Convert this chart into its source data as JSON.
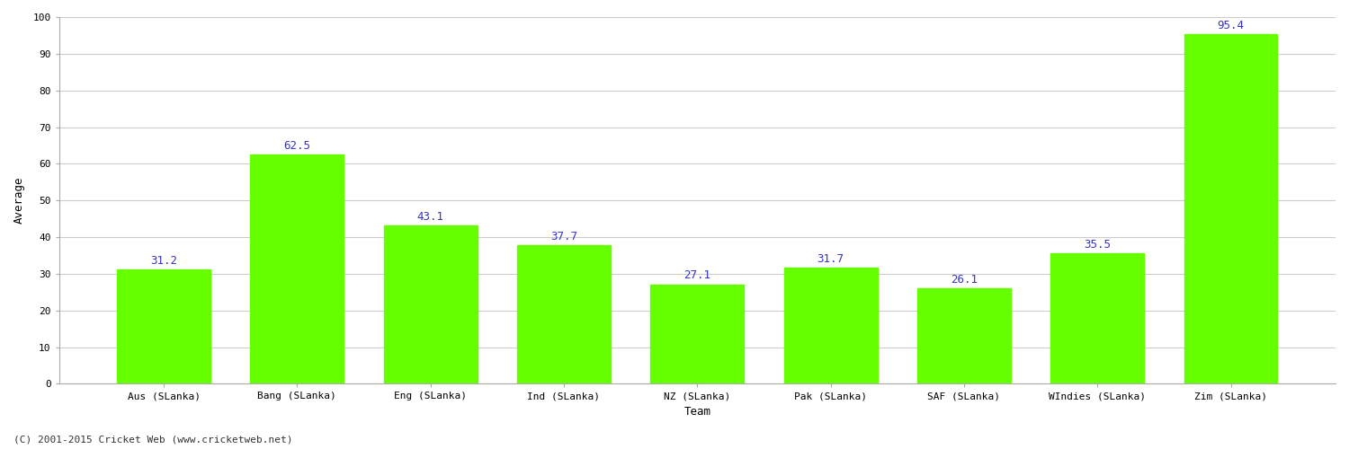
{
  "categories": [
    "Aus (SLanka)",
    "Bang (SLanka)",
    "Eng (SLanka)",
    "Ind (SLanka)",
    "NZ (SLanka)",
    "Pak (SLanka)",
    "SAF (SLanka)",
    "WIndies (SLanka)",
    "Zim (SLanka)"
  ],
  "values": [
    31.2,
    62.5,
    43.1,
    37.7,
    27.1,
    31.7,
    26.1,
    35.5,
    95.4
  ],
  "bar_color": "#66ff00",
  "label_color": "#3333cc",
  "ylabel": "Average",
  "xlabel": "Team",
  "ylim": [
    0,
    100
  ],
  "yticks": [
    0,
    10,
    20,
    30,
    40,
    50,
    60,
    70,
    80,
    90,
    100
  ],
  "background_color": "#ffffff",
  "grid_color": "#cccccc",
  "label_fontsize": 9,
  "axis_label_fontsize": 9,
  "tick_fontsize": 8,
  "footer": "(C) 2001-2015 Cricket Web (www.cricketweb.net)",
  "footer_fontsize": 8
}
